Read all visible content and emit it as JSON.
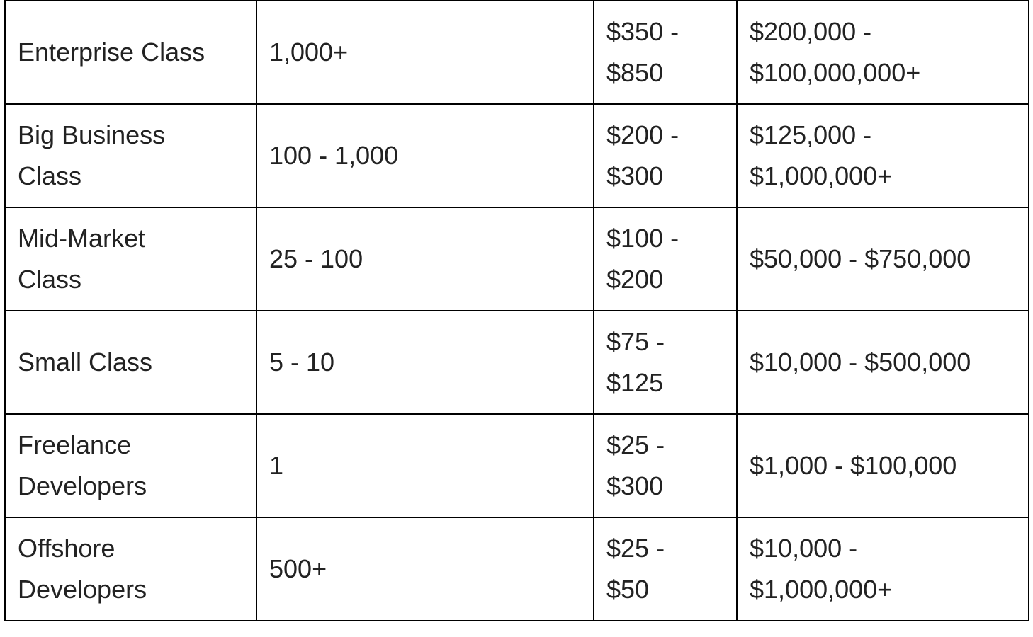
{
  "table": {
    "rows": [
      [
        [
          "Enterprise Class"
        ],
        [
          "1,000+"
        ],
        [
          "$350 -",
          "$850"
        ],
        [
          "$200,000 -",
          "$100,000,000+"
        ]
      ],
      [
        [
          "Big Business",
          "Class"
        ],
        [
          "100 - 1,000"
        ],
        [
          "$200 -",
          "$300"
        ],
        [
          "$125,000 -",
          "$1,000,000+"
        ]
      ],
      [
        [
          "Mid-Market",
          "Class"
        ],
        [
          "25 - 100"
        ],
        [
          "$100 -",
          "$200"
        ],
        [
          "$50,000 - $750,000"
        ]
      ],
      [
        [
          "Small Class"
        ],
        [
          "5 - 10"
        ],
        [
          "$75 -",
          "$125"
        ],
        [
          "$10,000 - $500,000"
        ]
      ],
      [
        [
          "Freelance",
          "Developers"
        ],
        [
          "1"
        ],
        [
          "$25 -",
          "$300"
        ],
        [
          "$1,000 - $100,000"
        ]
      ],
      [
        [
          "Offshore",
          "Developers"
        ],
        [
          "500+"
        ],
        [
          "$25 -",
          "$50"
        ],
        [
          "$10,000 -",
          "$1,000,000+"
        ]
      ]
    ]
  }
}
